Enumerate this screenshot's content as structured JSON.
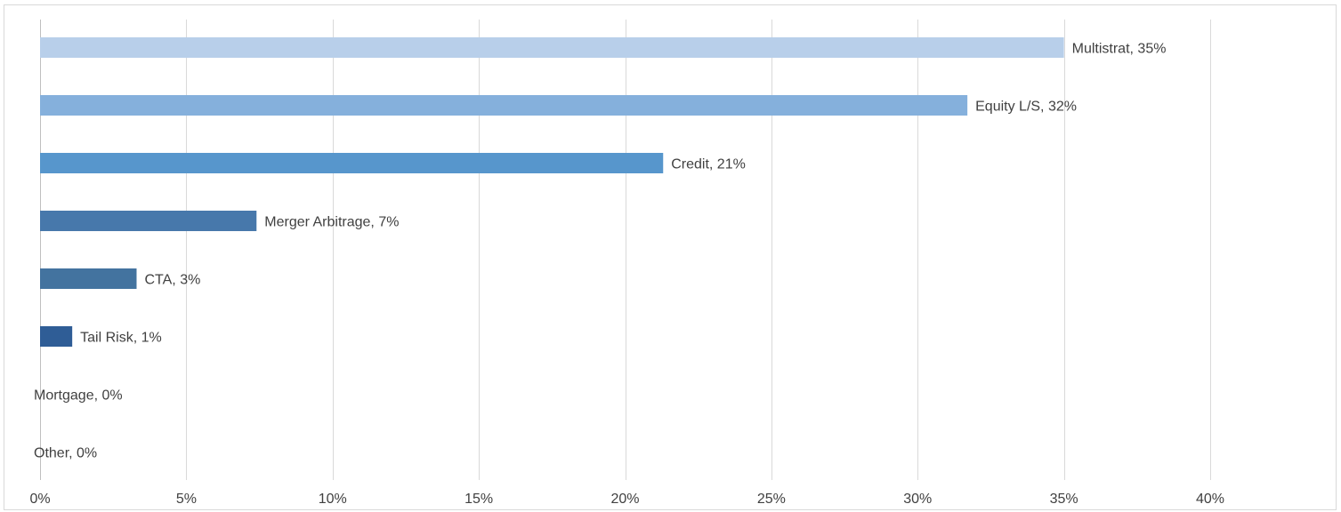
{
  "chart_data": {
    "type": "bar",
    "orientation": "horizontal",
    "categories": [
      "Multistrat",
      "Equity L/S",
      "Credit",
      "Merger Arbitrage",
      "CTA",
      "Tail Risk",
      "Mortgage",
      "Other"
    ],
    "values": [
      35,
      31.7,
      21.3,
      7.4,
      3.3,
      1.1,
      0,
      0
    ],
    "data_labels": [
      "Multistrat, 35%",
      "Equity L/S, 32%",
      "Credit, 21%",
      "Merger Arbitrage, 7%",
      "CTA, 3%",
      "Tail Risk, 1%",
      "Mortgage, 0%",
      "Other, 0%"
    ],
    "bar_colors": [
      "#b8cfea",
      "#85b0dc",
      "#5796cc",
      "#4778ab",
      "#43739f",
      "#2f5d96",
      "#2f5d96",
      "#2f5d96"
    ],
    "x_ticks": [
      0,
      5,
      10,
      15,
      20,
      25,
      30,
      35,
      40
    ],
    "x_tick_labels": [
      "0%",
      "5%",
      "10%",
      "15%",
      "20%",
      "25%",
      "30%",
      "35%",
      "40%"
    ],
    "xlim": [
      0,
      40
    ],
    "xlabel": "",
    "ylabel": "",
    "title": "",
    "grid": true,
    "legend": "none"
  }
}
